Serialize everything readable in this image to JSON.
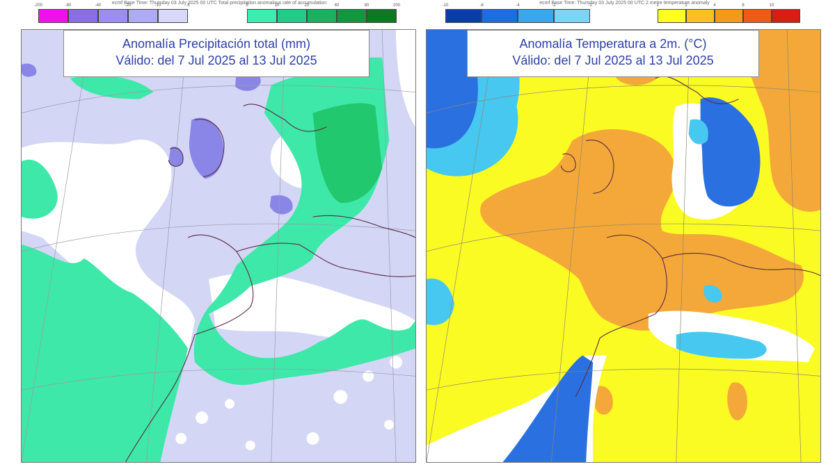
{
  "left_panel": {
    "header_text": "ecmf  Base Time: Thursday 03 July 2025 00 UTC  Total precipitation anomalous rate of accumulation",
    "title_line1": "Anomalía Precipitación total (mm)",
    "title_line2": "Válido: del 7 Jul 2025 al 13 Jul 2025",
    "legend": {
      "negative_ticks": [
        "-200",
        "-80",
        "-40",
        "-20",
        "-10",
        "-5"
      ],
      "positive_ticks": [
        "5",
        "10",
        "20",
        "40",
        "80",
        "200"
      ],
      "negative_colors": [
        "#ee11ee",
        "#8a6ee6",
        "#9b8ef0",
        "#aeaaf4",
        "#d8d8fa"
      ],
      "positive_colors": [
        "#3aeeb0",
        "#22cc88",
        "#1bb060",
        "#12963e",
        "#0b7a22"
      ]
    },
    "colors": {
      "background": "#d4d6f6",
      "white": "#ffffff",
      "light_green": "#3ee8a8",
      "green": "#22c86e",
      "blue_violet": "#8a86e8"
    }
  },
  "right_panel": {
    "header_text": "ecmf  Base Time: Thursday 03 July 2025 00 UTC  2 metre temperature anomaly",
    "title_line1": "Anomalía Temperatura a 2m. (°C)",
    "title_line2": "Válido: del 7 Jul 2025 al 13 Jul 2025",
    "legend": {
      "negative_ticks": [
        "-10",
        "-8",
        "-4",
        "-2",
        "-1"
      ],
      "positive_ticks": [
        "1",
        "2",
        "4",
        "8",
        "10"
      ],
      "negative_colors": [
        "#0a3da8",
        "#1a6fe0",
        "#3aa6f0",
        "#7ad6f4"
      ],
      "positive_colors": [
        "#ffff22",
        "#f8c020",
        "#f49a18",
        "#ee5a18",
        "#d81e12"
      ]
    },
    "colors": {
      "yellow": "#fbfb24",
      "orange": "#f4a83a",
      "light_blue": "#46c8f0",
      "blue": "#2a70e0",
      "white": "#ffffff"
    }
  }
}
